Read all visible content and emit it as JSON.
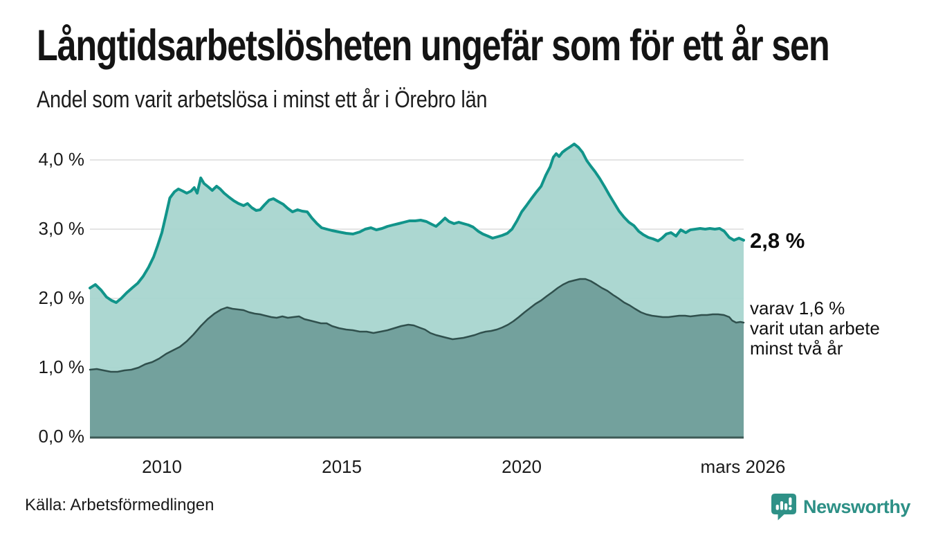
{
  "header": {
    "title": "Långtidsarbetslösheten ungefär som för ett år sen",
    "subtitle": "Andel som varit arbetslösa i minst ett år i Örebro län"
  },
  "annotations": {
    "current_value": "2,8 %",
    "secondary_lines": [
      "varav 1,6 %",
      "varit utan arbete",
      "minst två år"
    ]
  },
  "footer": {
    "source": "Källa: Arbetsförmedlingen",
    "logo_text": "Newsworthy"
  },
  "colors": {
    "line_primary": "#11948a",
    "fill_primary": "#a7d4ce",
    "line_secondary": "#30504d",
    "fill_secondary": "#719f9b",
    "axis": "#3d5a56",
    "gridline": "#dcdcdc",
    "logo_teal": "#2e9187"
  },
  "chart_data": {
    "type": "area",
    "title": "Långtidsarbetslösheten ungefär som för ett år sen",
    "subtitle": "Andel som varit arbetslösa i minst ett år i Örebro län",
    "xlabel": "",
    "ylabel": "",
    "grid": true,
    "legend": "none (annotated at line ends)",
    "xlim": [
      2008.0,
      2026.17
    ],
    "ylim": [
      0,
      4.45
    ],
    "x_ticks": [
      {
        "x": 2010.0,
        "label": "2010"
      },
      {
        "x": 2015.0,
        "label": "2015"
      },
      {
        "x": 2020.0,
        "label": "2020"
      },
      {
        "x": 2026.15,
        "label": "mars 2026"
      }
    ],
    "y_ticks": [
      {
        "value": 0,
        "label": "0,0 %"
      },
      {
        "value": 1,
        "label": "1,0 %"
      },
      {
        "value": 2,
        "label": "2,0 %"
      },
      {
        "value": 3,
        "label": "3,0 %"
      },
      {
        "value": 4,
        "label": "4,0 %"
      }
    ],
    "series": [
      {
        "name": "Andel arbetslösa minst ett år",
        "end_label": "2,8 %",
        "points": [
          [
            2008.0,
            2.15
          ],
          [
            2008.15,
            2.2
          ],
          [
            2008.31,
            2.12
          ],
          [
            2008.46,
            2.02
          ],
          [
            2008.6,
            1.97
          ],
          [
            2008.73,
            1.94
          ],
          [
            2008.87,
            2.0
          ],
          [
            2009.02,
            2.08
          ],
          [
            2009.17,
            2.15
          ],
          [
            2009.33,
            2.22
          ],
          [
            2009.48,
            2.32
          ],
          [
            2009.63,
            2.45
          ],
          [
            2009.77,
            2.6
          ],
          [
            2009.88,
            2.76
          ],
          [
            2010.0,
            2.95
          ],
          [
            2010.12,
            3.22
          ],
          [
            2010.22,
            3.45
          ],
          [
            2010.35,
            3.54
          ],
          [
            2010.46,
            3.58
          ],
          [
            2010.58,
            3.55
          ],
          [
            2010.69,
            3.52
          ],
          [
            2010.81,
            3.55
          ],
          [
            2010.9,
            3.6
          ],
          [
            2010.98,
            3.52
          ],
          [
            2011.08,
            3.74
          ],
          [
            2011.17,
            3.66
          ],
          [
            2011.29,
            3.61
          ],
          [
            2011.4,
            3.56
          ],
          [
            2011.52,
            3.62
          ],
          [
            2011.62,
            3.58
          ],
          [
            2011.73,
            3.52
          ],
          [
            2011.87,
            3.46
          ],
          [
            2012.0,
            3.41
          ],
          [
            2012.13,
            3.37
          ],
          [
            2012.27,
            3.34
          ],
          [
            2012.38,
            3.37
          ],
          [
            2012.5,
            3.31
          ],
          [
            2012.62,
            3.27
          ],
          [
            2012.73,
            3.28
          ],
          [
            2012.85,
            3.35
          ],
          [
            2012.98,
            3.42
          ],
          [
            2013.1,
            3.44
          ],
          [
            2013.23,
            3.4
          ],
          [
            2013.37,
            3.36
          ],
          [
            2013.5,
            3.3
          ],
          [
            2013.63,
            3.25
          ],
          [
            2013.77,
            3.28
          ],
          [
            2013.9,
            3.26
          ],
          [
            2014.04,
            3.25
          ],
          [
            2014.17,
            3.16
          ],
          [
            2014.31,
            3.08
          ],
          [
            2014.44,
            3.02
          ],
          [
            2014.58,
            3.0
          ],
          [
            2014.73,
            2.98
          ],
          [
            2014.92,
            2.96
          ],
          [
            2015.12,
            2.94
          ],
          [
            2015.31,
            2.93
          ],
          [
            2015.5,
            2.96
          ],
          [
            2015.65,
            3.0
          ],
          [
            2015.81,
            3.02
          ],
          [
            2015.96,
            2.99
          ],
          [
            2016.12,
            3.01
          ],
          [
            2016.27,
            3.04
          ],
          [
            2016.42,
            3.06
          ],
          [
            2016.58,
            3.08
          ],
          [
            2016.73,
            3.1
          ],
          [
            2016.88,
            3.12
          ],
          [
            2017.04,
            3.12
          ],
          [
            2017.19,
            3.13
          ],
          [
            2017.35,
            3.11
          ],
          [
            2017.5,
            3.07
          ],
          [
            2017.62,
            3.04
          ],
          [
            2017.75,
            3.1
          ],
          [
            2017.87,
            3.16
          ],
          [
            2017.98,
            3.11
          ],
          [
            2018.12,
            3.08
          ],
          [
            2018.25,
            3.1
          ],
          [
            2018.38,
            3.08
          ],
          [
            2018.52,
            3.06
          ],
          [
            2018.65,
            3.03
          ],
          [
            2018.79,
            2.97
          ],
          [
            2018.92,
            2.93
          ],
          [
            2019.06,
            2.9
          ],
          [
            2019.19,
            2.87
          ],
          [
            2019.33,
            2.89
          ],
          [
            2019.46,
            2.91
          ],
          [
            2019.6,
            2.94
          ],
          [
            2019.73,
            3.0
          ],
          [
            2019.87,
            3.12
          ],
          [
            2020.0,
            3.25
          ],
          [
            2020.13,
            3.34
          ],
          [
            2020.27,
            3.44
          ],
          [
            2020.4,
            3.53
          ],
          [
            2020.54,
            3.62
          ],
          [
            2020.67,
            3.78
          ],
          [
            2020.79,
            3.9
          ],
          [
            2020.88,
            4.04
          ],
          [
            2020.96,
            4.09
          ],
          [
            2021.04,
            4.05
          ],
          [
            2021.13,
            4.11
          ],
          [
            2021.23,
            4.15
          ],
          [
            2021.35,
            4.19
          ],
          [
            2021.46,
            4.23
          ],
          [
            2021.58,
            4.18
          ],
          [
            2021.69,
            4.11
          ],
          [
            2021.81,
            3.99
          ],
          [
            2021.92,
            3.91
          ],
          [
            2022.04,
            3.83
          ],
          [
            2022.17,
            3.73
          ],
          [
            2022.31,
            3.61
          ],
          [
            2022.44,
            3.49
          ],
          [
            2022.58,
            3.37
          ],
          [
            2022.71,
            3.26
          ],
          [
            2022.85,
            3.17
          ],
          [
            2022.98,
            3.1
          ],
          [
            2023.12,
            3.05
          ],
          [
            2023.25,
            2.97
          ],
          [
            2023.38,
            2.92
          ],
          [
            2023.52,
            2.88
          ],
          [
            2023.65,
            2.86
          ],
          [
            2023.79,
            2.83
          ],
          [
            2023.9,
            2.87
          ],
          [
            2024.02,
            2.93
          ],
          [
            2024.15,
            2.95
          ],
          [
            2024.29,
            2.9
          ],
          [
            2024.42,
            2.99
          ],
          [
            2024.56,
            2.95
          ],
          [
            2024.69,
            2.99
          ],
          [
            2024.83,
            3.0
          ],
          [
            2024.96,
            3.01
          ],
          [
            2025.1,
            3.0
          ],
          [
            2025.23,
            3.01
          ],
          [
            2025.37,
            3.0
          ],
          [
            2025.5,
            3.01
          ],
          [
            2025.63,
            2.97
          ],
          [
            2025.77,
            2.88
          ],
          [
            2025.9,
            2.84
          ],
          [
            2026.04,
            2.87
          ],
          [
            2026.17,
            2.84
          ]
        ]
      },
      {
        "name": "varav arbetslösa minst två år",
        "end_label": "1,6 %",
        "points": [
          [
            2008.0,
            0.97
          ],
          [
            2008.19,
            0.98
          ],
          [
            2008.38,
            0.96
          ],
          [
            2008.58,
            0.94
          ],
          [
            2008.77,
            0.94
          ],
          [
            2008.96,
            0.96
          ],
          [
            2009.15,
            0.97
          ],
          [
            2009.35,
            1.0
          ],
          [
            2009.54,
            1.05
          ],
          [
            2009.73,
            1.08
          ],
          [
            2009.92,
            1.13
          ],
          [
            2010.12,
            1.2
          ],
          [
            2010.31,
            1.25
          ],
          [
            2010.5,
            1.3
          ],
          [
            2010.69,
            1.38
          ],
          [
            2010.88,
            1.48
          ],
          [
            2011.08,
            1.6
          ],
          [
            2011.27,
            1.7
          ],
          [
            2011.46,
            1.78
          ],
          [
            2011.65,
            1.84
          ],
          [
            2011.81,
            1.87
          ],
          [
            2011.96,
            1.85
          ],
          [
            2012.12,
            1.84
          ],
          [
            2012.27,
            1.83
          ],
          [
            2012.42,
            1.8
          ],
          [
            2012.58,
            1.78
          ],
          [
            2012.73,
            1.77
          ],
          [
            2012.88,
            1.75
          ],
          [
            2013.04,
            1.73
          ],
          [
            2013.19,
            1.72
          ],
          [
            2013.35,
            1.74
          ],
          [
            2013.5,
            1.72
          ],
          [
            2013.65,
            1.73
          ],
          [
            2013.81,
            1.74
          ],
          [
            2013.96,
            1.7
          ],
          [
            2014.12,
            1.68
          ],
          [
            2014.27,
            1.66
          ],
          [
            2014.42,
            1.64
          ],
          [
            2014.58,
            1.64
          ],
          [
            2014.73,
            1.6
          ],
          [
            2014.92,
            1.57
          ],
          [
            2015.12,
            1.55
          ],
          [
            2015.31,
            1.54
          ],
          [
            2015.5,
            1.52
          ],
          [
            2015.69,
            1.52
          ],
          [
            2015.88,
            1.5
          ],
          [
            2016.08,
            1.52
          ],
          [
            2016.27,
            1.54
          ],
          [
            2016.46,
            1.57
          ],
          [
            2016.65,
            1.6
          ],
          [
            2016.85,
            1.62
          ],
          [
            2017.0,
            1.61
          ],
          [
            2017.15,
            1.58
          ],
          [
            2017.31,
            1.55
          ],
          [
            2017.46,
            1.5
          ],
          [
            2017.62,
            1.47
          ],
          [
            2017.77,
            1.45
          ],
          [
            2017.92,
            1.43
          ],
          [
            2018.08,
            1.41
          ],
          [
            2018.23,
            1.42
          ],
          [
            2018.38,
            1.43
          ],
          [
            2018.54,
            1.45
          ],
          [
            2018.69,
            1.47
          ],
          [
            2018.85,
            1.5
          ],
          [
            2019.0,
            1.52
          ],
          [
            2019.15,
            1.53
          ],
          [
            2019.31,
            1.55
          ],
          [
            2019.46,
            1.58
          ],
          [
            2019.62,
            1.62
          ],
          [
            2019.77,
            1.67
          ],
          [
            2019.92,
            1.73
          ],
          [
            2020.08,
            1.8
          ],
          [
            2020.23,
            1.86
          ],
          [
            2020.38,
            1.92
          ],
          [
            2020.54,
            1.97
          ],
          [
            2020.69,
            2.03
          ],
          [
            2020.85,
            2.09
          ],
          [
            2021.0,
            2.15
          ],
          [
            2021.15,
            2.2
          ],
          [
            2021.31,
            2.24
          ],
          [
            2021.46,
            2.26
          ],
          [
            2021.62,
            2.28
          ],
          [
            2021.77,
            2.28
          ],
          [
            2021.92,
            2.25
          ],
          [
            2022.08,
            2.2
          ],
          [
            2022.23,
            2.15
          ],
          [
            2022.38,
            2.11
          ],
          [
            2022.54,
            2.05
          ],
          [
            2022.69,
            2.0
          ],
          [
            2022.85,
            1.94
          ],
          [
            2023.0,
            1.9
          ],
          [
            2023.15,
            1.85
          ],
          [
            2023.31,
            1.8
          ],
          [
            2023.46,
            1.77
          ],
          [
            2023.62,
            1.75
          ],
          [
            2023.77,
            1.74
          ],
          [
            2023.92,
            1.73
          ],
          [
            2024.08,
            1.73
          ],
          [
            2024.23,
            1.74
          ],
          [
            2024.38,
            1.75
          ],
          [
            2024.54,
            1.75
          ],
          [
            2024.69,
            1.74
          ],
          [
            2024.85,
            1.75
          ],
          [
            2025.0,
            1.76
          ],
          [
            2025.15,
            1.76
          ],
          [
            2025.31,
            1.77
          ],
          [
            2025.46,
            1.77
          ],
          [
            2025.62,
            1.76
          ],
          [
            2025.77,
            1.73
          ],
          [
            2025.85,
            1.68
          ],
          [
            2025.96,
            1.65
          ],
          [
            2026.08,
            1.66
          ],
          [
            2026.17,
            1.65
          ]
        ]
      }
    ]
  }
}
